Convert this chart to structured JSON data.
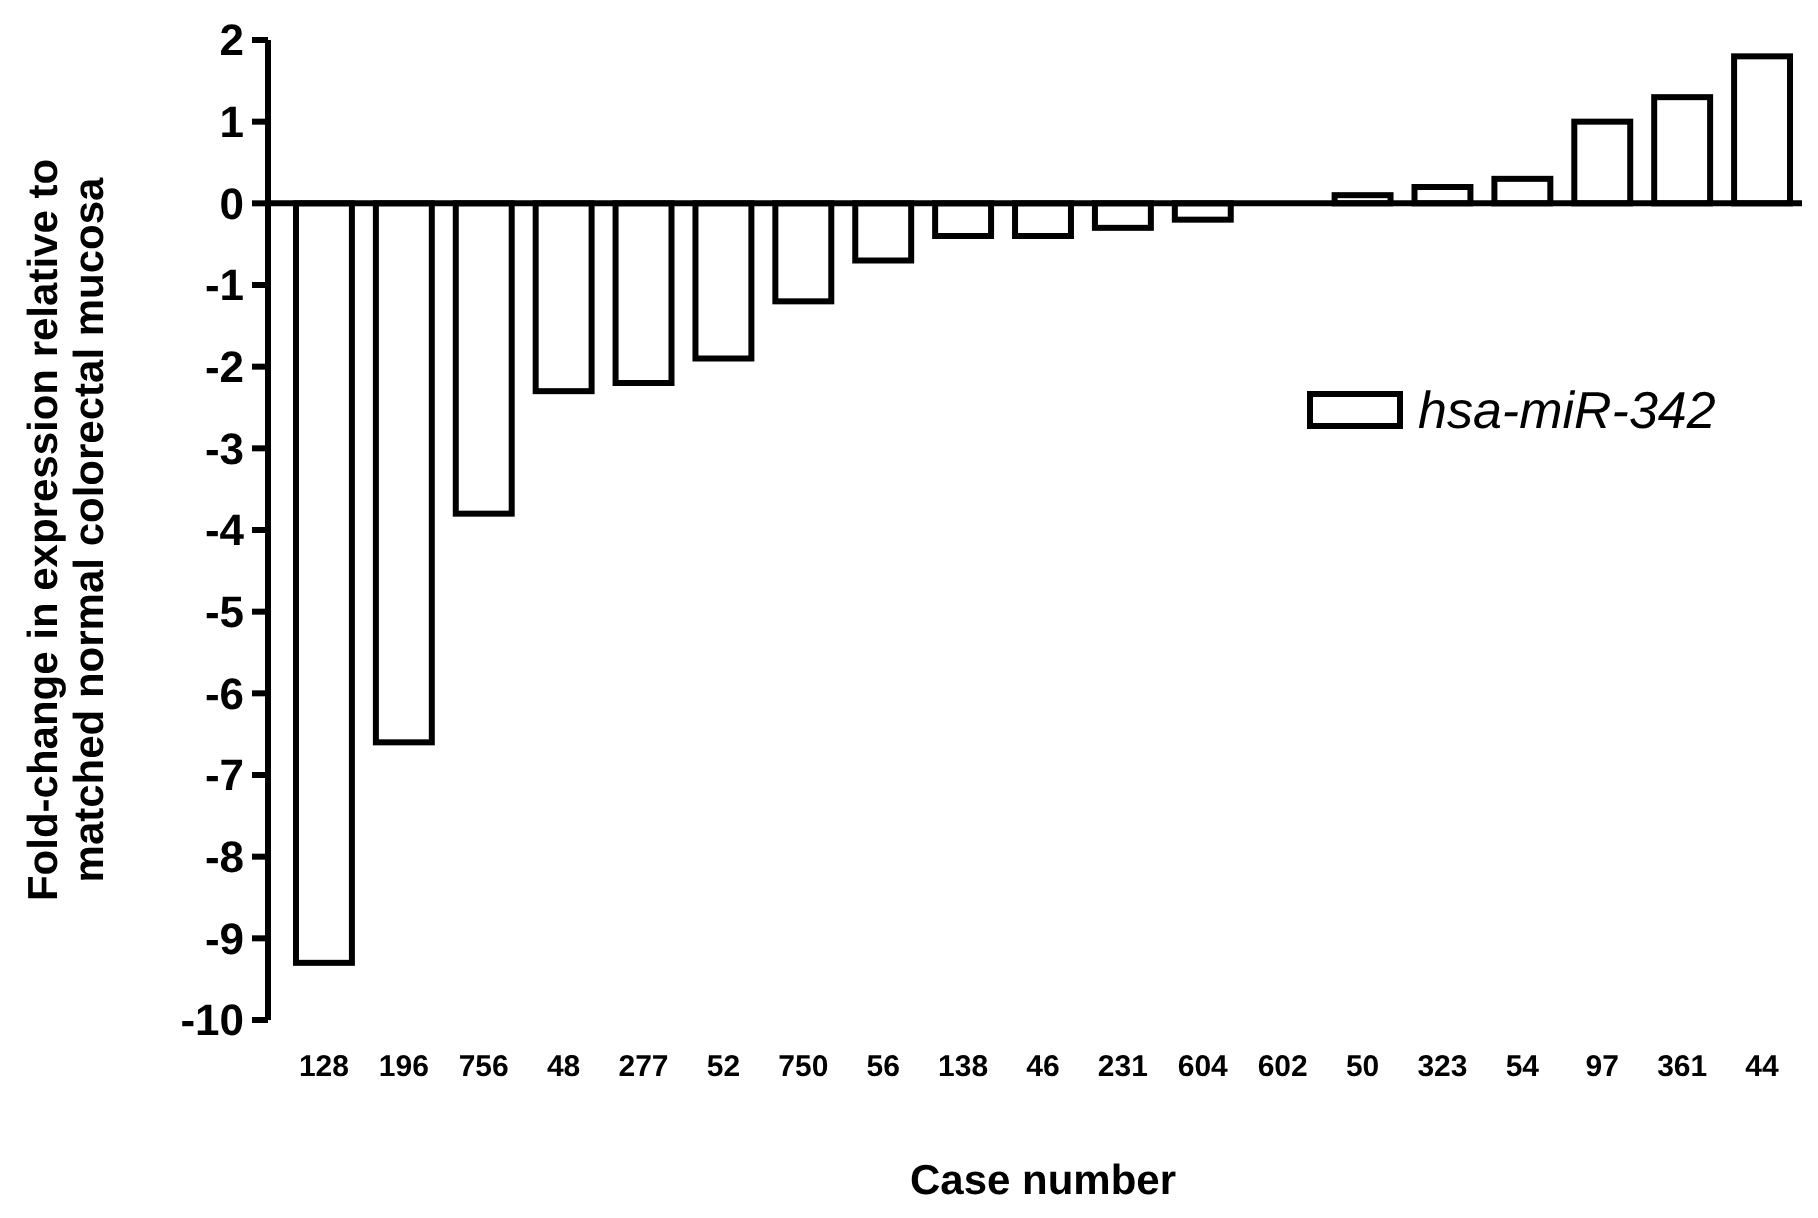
{
  "chart_data": {
    "type": "bar",
    "xlabel": "Case number",
    "ylabel": "Fold-change in expression relative to\nmatched normal colorectal mucosa",
    "categories": [
      "128",
      "196",
      "756",
      "48",
      "277",
      "52",
      "750",
      "56",
      "138",
      "46",
      "231",
      "604",
      "602",
      "50",
      "323",
      "54",
      "97",
      "361",
      "44"
    ],
    "series": [
      {
        "name": "hsa-miR-342",
        "color": "#ffffff",
        "values": [
          -9.3,
          -6.6,
          -3.8,
          -2.3,
          -2.2,
          -1.9,
          -1.2,
          -0.7,
          -0.4,
          -0.4,
          -0.3,
          -0.2,
          0,
          0.1,
          0.2,
          0.3,
          1.0,
          1.3,
          1.8
        ]
      }
    ],
    "ylim": [
      -10,
      2
    ],
    "yticks": [
      -10,
      -9,
      -8,
      -7,
      -6,
      -5,
      -4,
      -3,
      -2,
      -1,
      0,
      1,
      2
    ],
    "legend": "right"
  }
}
